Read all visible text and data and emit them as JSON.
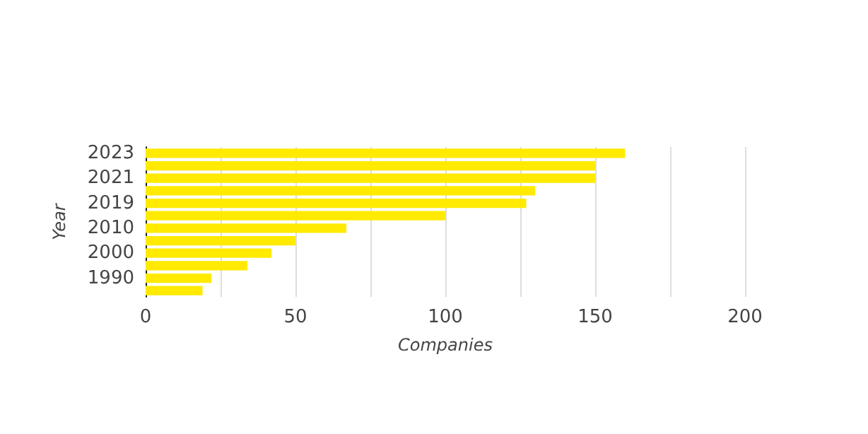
{
  "chart_data": {
    "type": "bar",
    "orientation": "horizontal",
    "xlabel": "Companies",
    "ylabel": "Year",
    "categories": [
      "2023",
      null,
      "2021",
      null,
      "2019",
      null,
      "2010",
      null,
      "2000",
      null,
      "1990",
      null
    ],
    "values": [
      160,
      150,
      150,
      130,
      127,
      100,
      67,
      50,
      42,
      34,
      22,
      19
    ],
    "color": "#ffea00",
    "xlim": [
      0,
      200
    ],
    "xticks": [
      0,
      {
        "value": 25,
        "label": null
      },
      50,
      {
        "value": 75,
        "label": null
      },
      100,
      {
        "value": 125,
        "label": null
      },
      150,
      {
        "value": 175,
        "label": null
      },
      200
    ],
    "grid": "x"
  }
}
